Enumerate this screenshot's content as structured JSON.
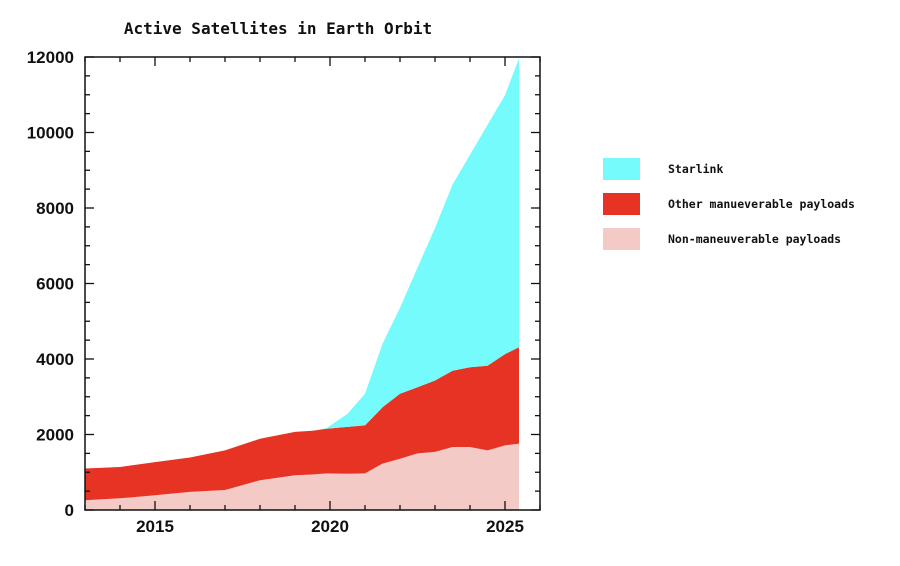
{
  "chart_data": {
    "type": "area",
    "stacked": true,
    "title": "Active Satellites in Earth Orbit",
    "xlabel": "",
    "ylabel": "",
    "xlim": [
      2013,
      2026
    ],
    "ylim": [
      0,
      12000
    ],
    "x_ticks": [
      2015,
      2020,
      2025
    ],
    "y_ticks": [
      0,
      2000,
      4000,
      6000,
      8000,
      10000,
      12000
    ],
    "grid": false,
    "legend_position": "right",
    "x": [
      2013.0,
      2014.0,
      2015.0,
      2016.0,
      2017.0,
      2018.0,
      2019.0,
      2019.5,
      2019.9,
      2020.5,
      2021.0,
      2021.5,
      2022.0,
      2022.5,
      2023.0,
      2023.5,
      2024.0,
      2024.5,
      2025.0,
      2025.4
    ],
    "series": [
      {
        "name": "Non-maneuverable payloads",
        "color": "#f4cac7",
        "values": [
          260,
          310,
          390,
          480,
          530,
          790,
          920,
          940,
          970,
          960,
          970,
          1230,
          1360,
          1500,
          1540,
          1670,
          1670,
          1580,
          1710,
          1760
        ]
      },
      {
        "name": "Other manueverable payloads",
        "color": "#e63323",
        "values": [
          840,
          830,
          880,
          910,
          1050,
          1100,
          1150,
          1160,
          1180,
          1240,
          1270,
          1490,
          1720,
          1750,
          1890,
          2020,
          2110,
          2240,
          2420,
          2550
        ]
      },
      {
        "name": "Starlink",
        "color": "#75fbfb",
        "values": [
          0,
          0,
          0,
          0,
          0,
          0,
          0,
          0,
          20,
          350,
          840,
          1680,
          2280,
          3170,
          4040,
          4930,
          5630,
          6380,
          6860,
          7650
        ]
      }
    ],
    "legend": [
      {
        "label": "Starlink",
        "color": "#75fbfb"
      },
      {
        "label": "Other manueverable payloads",
        "color": "#e63323"
      },
      {
        "label": "Non-maneuverable payloads",
        "color": "#f4cac7"
      }
    ]
  }
}
